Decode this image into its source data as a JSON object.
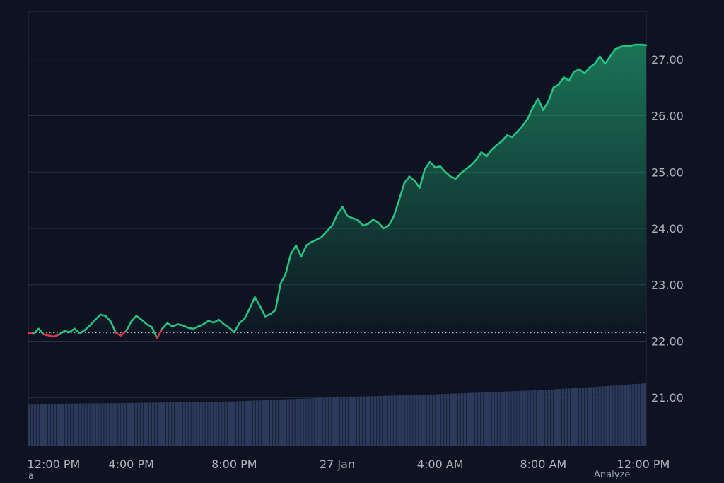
{
  "chart_data": {
    "type": "line",
    "title": "",
    "xlabel": "",
    "ylabel": "",
    "baseline": 22.15,
    "ylim": [
      20.15,
      27.85
    ],
    "y_ticks": [
      21.0,
      22.0,
      23.0,
      24.0,
      25.0,
      26.0,
      27.0
    ],
    "y_tick_labels": [
      "21.00",
      "22.00",
      "23.00",
      "24.00",
      "25.00",
      "26.00",
      "27.00"
    ],
    "x_ticks": [
      {
        "hours": 0,
        "label": "12:00 PM"
      },
      {
        "hours": 4,
        "label": "4:00 PM"
      },
      {
        "hours": 8,
        "label": "8:00 PM"
      },
      {
        "hours": 12,
        "label": "27 Jan"
      },
      {
        "hours": 16,
        "label": "4:00 AM"
      },
      {
        "hours": 20,
        "label": "8:00 AM"
      },
      {
        "hours": 24,
        "label": "12:00 PM"
      }
    ],
    "series": [
      {
        "values_x_hours": [
          0,
          0.2,
          0.4,
          0.6,
          0.8,
          1.0,
          1.2,
          1.4,
          1.6,
          1.8,
          2.0,
          2.2,
          2.4,
          2.6,
          2.8,
          3.0,
          3.2,
          3.4,
          3.6,
          3.8,
          4.0,
          4.2,
          4.4,
          4.6,
          4.8,
          5.0,
          5.2,
          5.4,
          5.6,
          5.8,
          6.0,
          6.2,
          6.4,
          6.6,
          6.8,
          7.0,
          7.2,
          7.4,
          7.6,
          7.8,
          8.0,
          8.2,
          8.4,
          8.6,
          8.8,
          9.0,
          9.2,
          9.4,
          9.6,
          9.8,
          10.0,
          10.2,
          10.4,
          10.6,
          10.8,
          11.0,
          11.2,
          11.4,
          11.6,
          11.8,
          12.0,
          12.2,
          12.4,
          12.6,
          12.8,
          13.0,
          13.2,
          13.4,
          13.6,
          13.8,
          14.0,
          14.2,
          14.4,
          14.6,
          14.8,
          15.0,
          15.2,
          15.4,
          15.6,
          15.8,
          16.0,
          16.2,
          16.4,
          16.6,
          16.8,
          17.0,
          17.2,
          17.4,
          17.6,
          17.8,
          18.0,
          18.2,
          18.4,
          18.6,
          18.8,
          19.0,
          19.2,
          19.4,
          19.6,
          19.8,
          20.0,
          20.2,
          20.4,
          20.6,
          20.8,
          21.0,
          21.2,
          21.4,
          21.6,
          21.8,
          22.0,
          22.2,
          22.4,
          22.6,
          22.8,
          23.0,
          23.2,
          23.4,
          23.6,
          23.8,
          24.0
        ],
        "values": [
          22.15,
          22.13,
          22.22,
          22.12,
          22.1,
          22.08,
          22.12,
          22.18,
          22.16,
          22.22,
          22.14,
          22.2,
          22.28,
          22.38,
          22.47,
          22.45,
          22.35,
          22.15,
          22.1,
          22.18,
          22.35,
          22.45,
          22.38,
          22.3,
          22.25,
          22.05,
          22.22,
          22.32,
          22.26,
          22.3,
          22.28,
          22.24,
          22.22,
          22.26,
          22.3,
          22.36,
          22.33,
          22.38,
          22.3,
          22.24,
          22.16,
          22.32,
          22.4,
          22.58,
          22.78,
          22.62,
          22.44,
          22.48,
          22.55,
          23.02,
          23.2,
          23.55,
          23.7,
          23.5,
          23.7,
          23.76,
          23.8,
          23.85,
          23.95,
          24.05,
          24.25,
          24.38,
          24.22,
          24.18,
          24.15,
          24.05,
          24.08,
          24.16,
          24.1,
          24.0,
          24.05,
          24.22,
          24.5,
          24.8,
          24.92,
          24.85,
          24.72,
          25.05,
          25.18,
          25.08,
          25.1,
          25.0,
          24.92,
          24.88,
          24.98,
          25.05,
          25.12,
          25.22,
          25.35,
          25.28,
          25.4,
          25.48,
          25.55,
          25.65,
          25.62,
          25.72,
          25.82,
          25.95,
          26.15,
          26.3,
          26.1,
          26.25,
          26.5,
          26.55,
          26.68,
          26.62,
          26.78,
          26.82,
          26.75,
          26.85,
          26.92,
          27.05,
          26.92,
          27.05,
          27.18,
          27.22,
          27.24,
          27.24,
          27.26,
          27.26,
          27.25
        ]
      }
    ],
    "volume": {
      "values_x_hours": [
        0,
        2,
        4,
        6,
        8,
        10,
        12,
        14,
        16,
        18,
        20,
        22,
        24
      ],
      "values": [
        40,
        40.5,
        41,
        41.8,
        42.5,
        44.5,
        46.5,
        48,
        49.5,
        51.5,
        53.5,
        56.5,
        60
      ]
    },
    "colors": {
      "up": "#26c281",
      "down": "#e0334a",
      "grid": "#2a3140",
      "axis_text": "#aeb4bf",
      "background": "#0d1321",
      "volume": "#2e3a5c",
      "baseline": "#b8bcc6"
    }
  },
  "footer": {
    "left_label": "a",
    "right_label": "Analyze"
  }
}
